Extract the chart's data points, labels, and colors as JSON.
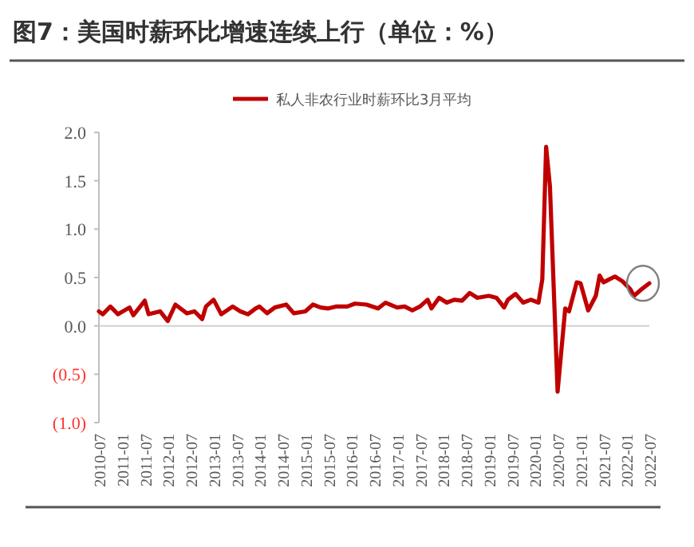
{
  "chart_data": {
    "type": "line",
    "title": "图7：美国时薪环比增速连续上行（单位：%）",
    "legend": "top",
    "marker": "none",
    "line_style": "solid",
    "ref_lines": [
      {
        "axis": "y",
        "value": 0,
        "color": "#d0d0d0"
      }
    ],
    "x": [
      "2010-07",
      "2010-08",
      "2010-10",
      "2010-12",
      "2011-03",
      "2011-04",
      "2011-07",
      "2011-08",
      "2011-11",
      "2012-01",
      "2012-03",
      "2012-06",
      "2012-08",
      "2012-10",
      "2012-11",
      "2013-01",
      "2013-03",
      "2013-06",
      "2013-08",
      "2013-10",
      "2013-12",
      "2014-01",
      "2014-03",
      "2014-05",
      "2014-08",
      "2014-10",
      "2015-01",
      "2015-03",
      "2015-05",
      "2015-07",
      "2015-09",
      "2015-12",
      "2016-02",
      "2016-05",
      "2016-08",
      "2016-10",
      "2017-01",
      "2017-03",
      "2017-05",
      "2017-07",
      "2017-09",
      "2017-10",
      "2017-12",
      "2018-02",
      "2018-04",
      "2018-06",
      "2018-08",
      "2018-10",
      "2019-01",
      "2019-03",
      "2019-05",
      "2019-06",
      "2019-08",
      "2019-10",
      "2019-12",
      "2020-02",
      "2020-03",
      "2020-04",
      "2020-05",
      "2020-07",
      "2020-09",
      "2020-10",
      "2020-12",
      "2021-01",
      "2021-03",
      "2021-05",
      "2021-06",
      "2021-07",
      "2021-10",
      "2021-12",
      "2022-02",
      "2022-03",
      "2022-05",
      "2022-07"
    ],
    "series": [
      {
        "name": "私人非农行业时薪环比3月平均",
        "color": "#c00000",
        "values": [
          0.15,
          0.12,
          0.2,
          0.12,
          0.19,
          0.11,
          0.26,
          0.12,
          0.15,
          0.05,
          0.22,
          0.13,
          0.15,
          0.07,
          0.2,
          0.27,
          0.12,
          0.2,
          0.15,
          0.12,
          0.18,
          0.2,
          0.13,
          0.19,
          0.22,
          0.13,
          0.15,
          0.22,
          0.19,
          0.18,
          0.2,
          0.2,
          0.23,
          0.22,
          0.18,
          0.24,
          0.19,
          0.2,
          0.16,
          0.2,
          0.27,
          0.18,
          0.29,
          0.24,
          0.27,
          0.26,
          0.34,
          0.29,
          0.31,
          0.29,
          0.19,
          0.27,
          0.33,
          0.24,
          0.27,
          0.24,
          0.48,
          1.85,
          1.44,
          -0.68,
          0.18,
          0.15,
          0.45,
          0.44,
          0.16,
          0.31,
          0.52,
          0.45,
          0.51,
          0.46,
          0.38,
          0.31,
          0.38,
          0.44
        ]
      }
    ],
    "xlim": [
      "2010-07",
      "2022-07"
    ],
    "xticks": [
      "2010-07",
      "2011-01",
      "2011-07",
      "2012-01",
      "2012-07",
      "2013-01",
      "2013-07",
      "2014-01",
      "2014-07",
      "2015-01",
      "2015-07",
      "2016-01",
      "2016-07",
      "2017-01",
      "2017-07",
      "2018-01",
      "2018-07",
      "2019-01",
      "2019-07",
      "2020-01",
      "2020-07",
      "2021-01",
      "2021-07",
      "2022-01",
      "2022-07"
    ],
    "ylim": [
      -1.0,
      2.0
    ],
    "yticks": [
      {
        "value": -1.0,
        "label": "(1.0)"
      },
      {
        "value": -0.5,
        "label": "(0.5)"
      },
      {
        "value": 0,
        "label": "0.0"
      },
      {
        "value": 0.5,
        "label": "0.5"
      },
      {
        "value": 1.0,
        "label": "1.0"
      },
      {
        "value": 1.5,
        "label": "1.5"
      },
      {
        "value": 2.0,
        "label": "2.0"
      }
    ]
  }
}
